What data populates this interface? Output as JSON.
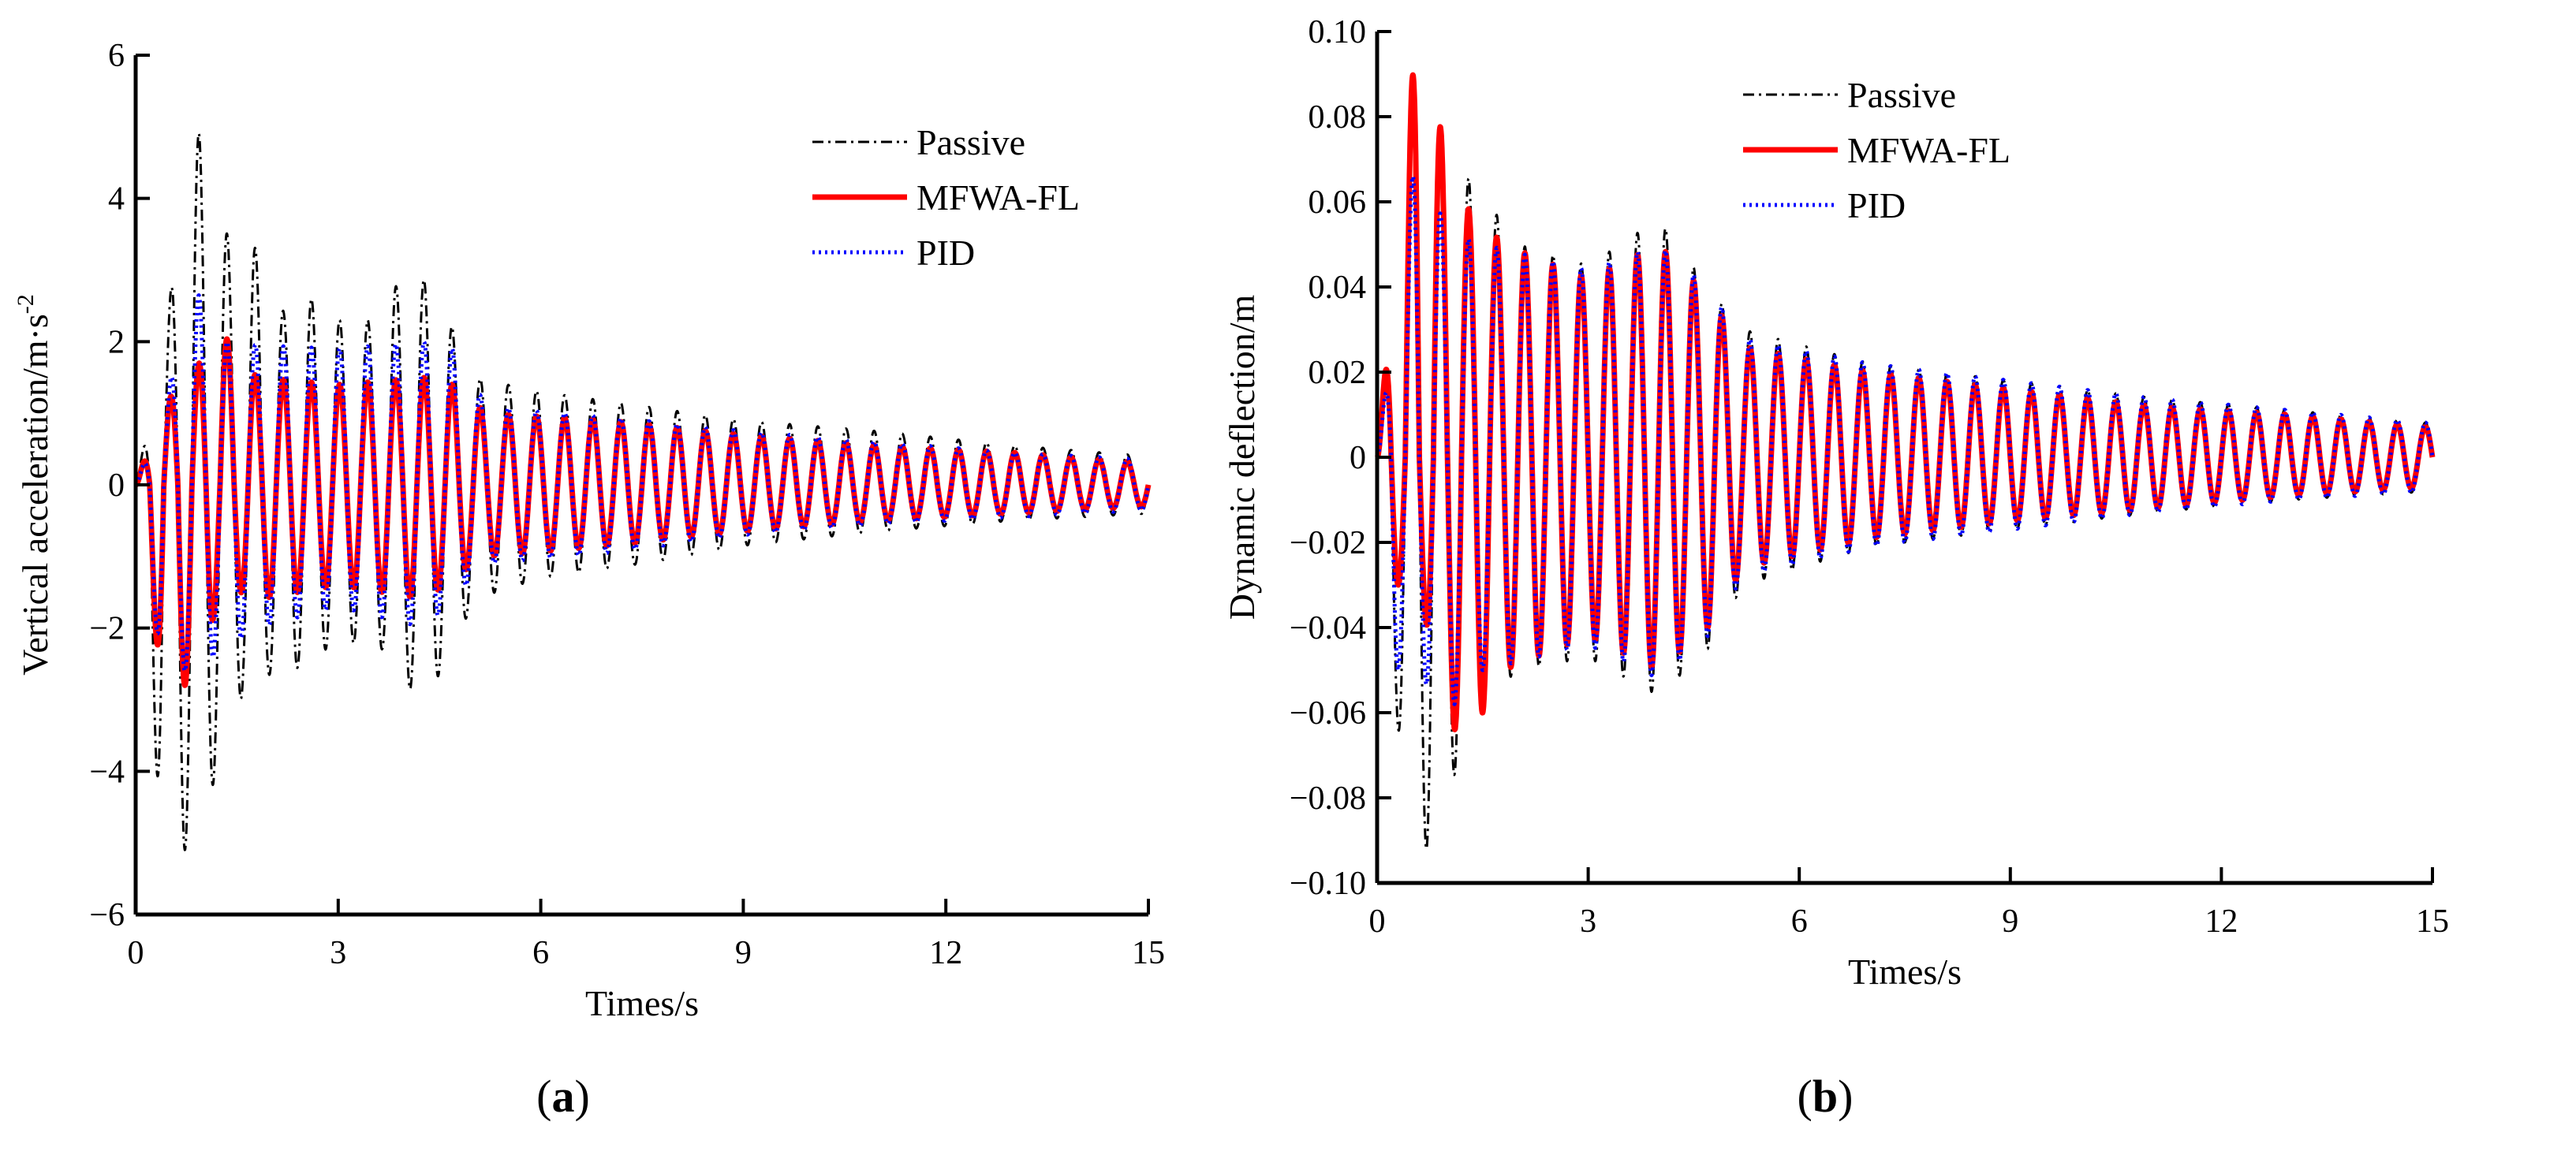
{
  "chart_data": [
    {
      "id": "a",
      "type": "line",
      "panel_label": "a",
      "xlabel": "Times/s",
      "ylabel": "Vertical acceleration/m·s",
      "ylabel_sup": "-2",
      "xlim": [
        0,
        15
      ],
      "ylim": [
        -6,
        6
      ],
      "xticks": [
        "0",
        "3",
        "6",
        "9",
        "12",
        "15"
      ],
      "xtick_values": [
        0,
        3,
        6,
        9,
        12,
        15
      ],
      "yticks": [
        "6",
        "4",
        "2",
        "0",
        "−2",
        "−4",
        "−6"
      ],
      "ytick_values": [
        6,
        4,
        2,
        0,
        -2,
        -4,
        -6
      ],
      "legend_position": "top-right",
      "frequency_hz": 2.4,
      "series": [
        {
          "name": "Passive",
          "color": "#000000",
          "style": "dash-dot",
          "envelope": [
            [
              0,
              0,
              0
            ],
            [
              0.4,
              1.8,
              -5.1
            ],
            [
              0.85,
              5.2,
              -5.1
            ],
            [
              1.4,
              3.35,
              -3.4
            ],
            [
              1.75,
              3.35,
              -2.5
            ],
            [
              2.2,
              2.4,
              -2.8
            ],
            [
              2.6,
              2.6,
              -2.3
            ],
            [
              3.0,
              2.3,
              -2.3
            ],
            [
              3.5,
              2.3,
              -2.1
            ],
            [
              4.1,
              3.1,
              -2.9
            ],
            [
              4.6,
              2.4,
              -2.6
            ],
            [
              5.0,
              1.5,
              -1.6
            ],
            [
              6,
              1.3,
              -1.3
            ],
            [
              7.5,
              1.1,
              -1.1
            ],
            [
              9,
              0.9,
              -0.85
            ],
            [
              11,
              0.75,
              -0.65
            ],
            [
              13,
              0.55,
              -0.5
            ],
            [
              15,
              0.4,
              -0.4
            ]
          ]
        },
        {
          "name": "MFWA-FL",
          "color": "#ff0000",
          "style": "solid",
          "envelope": [
            [
              0,
              0,
              0
            ],
            [
              0.4,
              1.1,
              -2.8
            ],
            [
              0.85,
              1.6,
              -2.8
            ],
            [
              1.3,
              2.1,
              -1.4
            ],
            [
              1.8,
              1.5,
              -1.6
            ],
            [
              3,
              1.4,
              -1.4
            ],
            [
              4.3,
              1.5,
              -1.6
            ],
            [
              4.7,
              1.4,
              -1.3
            ],
            [
              5.2,
              1.0,
              -1.0
            ],
            [
              7,
              0.9,
              -0.85
            ],
            [
              9,
              0.7,
              -0.65
            ],
            [
              11,
              0.55,
              -0.5
            ],
            [
              13,
              0.45,
              -0.4
            ],
            [
              15,
              0.3,
              -0.3
            ]
          ]
        },
        {
          "name": "PID",
          "color": "#0000ff",
          "style": "dotted",
          "envelope": [
            [
              0,
              0,
              0
            ],
            [
              0.4,
              1.0,
              -2.6
            ],
            [
              0.85,
              2.8,
              -2.6
            ],
            [
              1.3,
              2.0,
              -2.3
            ],
            [
              1.8,
              1.95,
              -2.0
            ],
            [
              3,
              1.9,
              -1.7
            ],
            [
              4.3,
              2.0,
              -2.0
            ],
            [
              4.7,
              1.9,
              -1.6
            ],
            [
              5.2,
              1.1,
              -1.1
            ],
            [
              7,
              0.95,
              -0.95
            ],
            [
              9,
              0.75,
              -0.7
            ],
            [
              11,
              0.6,
              -0.55
            ],
            [
              13,
              0.45,
              -0.45
            ],
            [
              15,
              0.35,
              -0.35
            ]
          ]
        }
      ]
    },
    {
      "id": "b",
      "type": "line",
      "panel_label": "b",
      "xlabel": "Times/s",
      "ylabel": "Dynamic deflection/m",
      "xlim": [
        0,
        15
      ],
      "ylim": [
        -0.1,
        0.1
      ],
      "xticks": [
        "0",
        "3",
        "6",
        "9",
        "12",
        "15"
      ],
      "xtick_values": [
        0,
        3,
        6,
        9,
        12,
        15
      ],
      "yticks": [
        "0.10",
        "0.08",
        "0.06",
        "0.04",
        "0.02",
        "0",
        "−0.02",
        "−0.04",
        "−0.06",
        "−0.08",
        "−0.10"
      ],
      "ytick_values": [
        0.1,
        0.08,
        0.06,
        0.04,
        0.02,
        0,
        -0.02,
        -0.04,
        -0.06,
        -0.08,
        -0.1
      ],
      "legend_position": "top-right",
      "frequency_hz": 2.5,
      "series": [
        {
          "name": "Passive",
          "color": "#000000",
          "style": "dash-dot",
          "envelope": [
            [
              0,
              0,
              -0.03
            ],
            [
              0.55,
              0.09,
              -0.092
            ],
            [
              0.8,
              0.07,
              -0.092
            ],
            [
              1.35,
              0.065,
              -0.06
            ],
            [
              2,
              0.05,
              -0.05
            ],
            [
              3,
              0.045,
              -0.047
            ],
            [
              4,
              0.056,
              -0.056
            ],
            [
              4.7,
              0.04,
              -0.045
            ],
            [
              5.2,
              0.03,
              -0.03
            ],
            [
              7,
              0.022,
              -0.021
            ],
            [
              9,
              0.018,
              -0.017
            ],
            [
              11,
              0.014,
              -0.013
            ],
            [
              13,
              0.011,
              -0.01
            ],
            [
              15,
              0.008,
              -0.008
            ]
          ]
        },
        {
          "name": "MFWA-FL",
          "color": "#ff0000",
          "style": "solid",
          "envelope": [
            [
              0,
              0,
              -0.03
            ],
            [
              0.55,
              0.098,
              -0.03
            ],
            [
              1.2,
              0.06,
              -0.07
            ],
            [
              1.8,
              0.05,
              -0.05
            ],
            [
              3,
              0.042,
              -0.042
            ],
            [
              4,
              0.05,
              -0.05
            ],
            [
              4.7,
              0.038,
              -0.04
            ],
            [
              5.2,
              0.026,
              -0.026
            ],
            [
              7,
              0.02,
              -0.019
            ],
            [
              9,
              0.016,
              -0.015
            ],
            [
              11,
              0.012,
              -0.012
            ],
            [
              13,
              0.01,
              -0.009
            ],
            [
              15,
              0.007,
              -0.007
            ]
          ]
        },
        {
          "name": "PID",
          "color": "#0000ff",
          "style": "dotted",
          "envelope": [
            [
              0,
              0,
              -0.05
            ],
            [
              0.55,
              0.072,
              -0.05
            ],
            [
              1.0,
              0.053,
              -0.06
            ],
            [
              1.5,
              0.05,
              -0.05
            ],
            [
              3,
              0.044,
              -0.044
            ],
            [
              4,
              0.05,
              -0.052
            ],
            [
              4.7,
              0.04,
              -0.042
            ],
            [
              5.2,
              0.028,
              -0.028
            ],
            [
              7,
              0.022,
              -0.021
            ],
            [
              9,
              0.018,
              -0.017
            ],
            [
              11,
              0.014,
              -0.013
            ],
            [
              13,
              0.011,
              -0.01
            ],
            [
              15,
              0.008,
              -0.008
            ]
          ]
        }
      ]
    }
  ]
}
